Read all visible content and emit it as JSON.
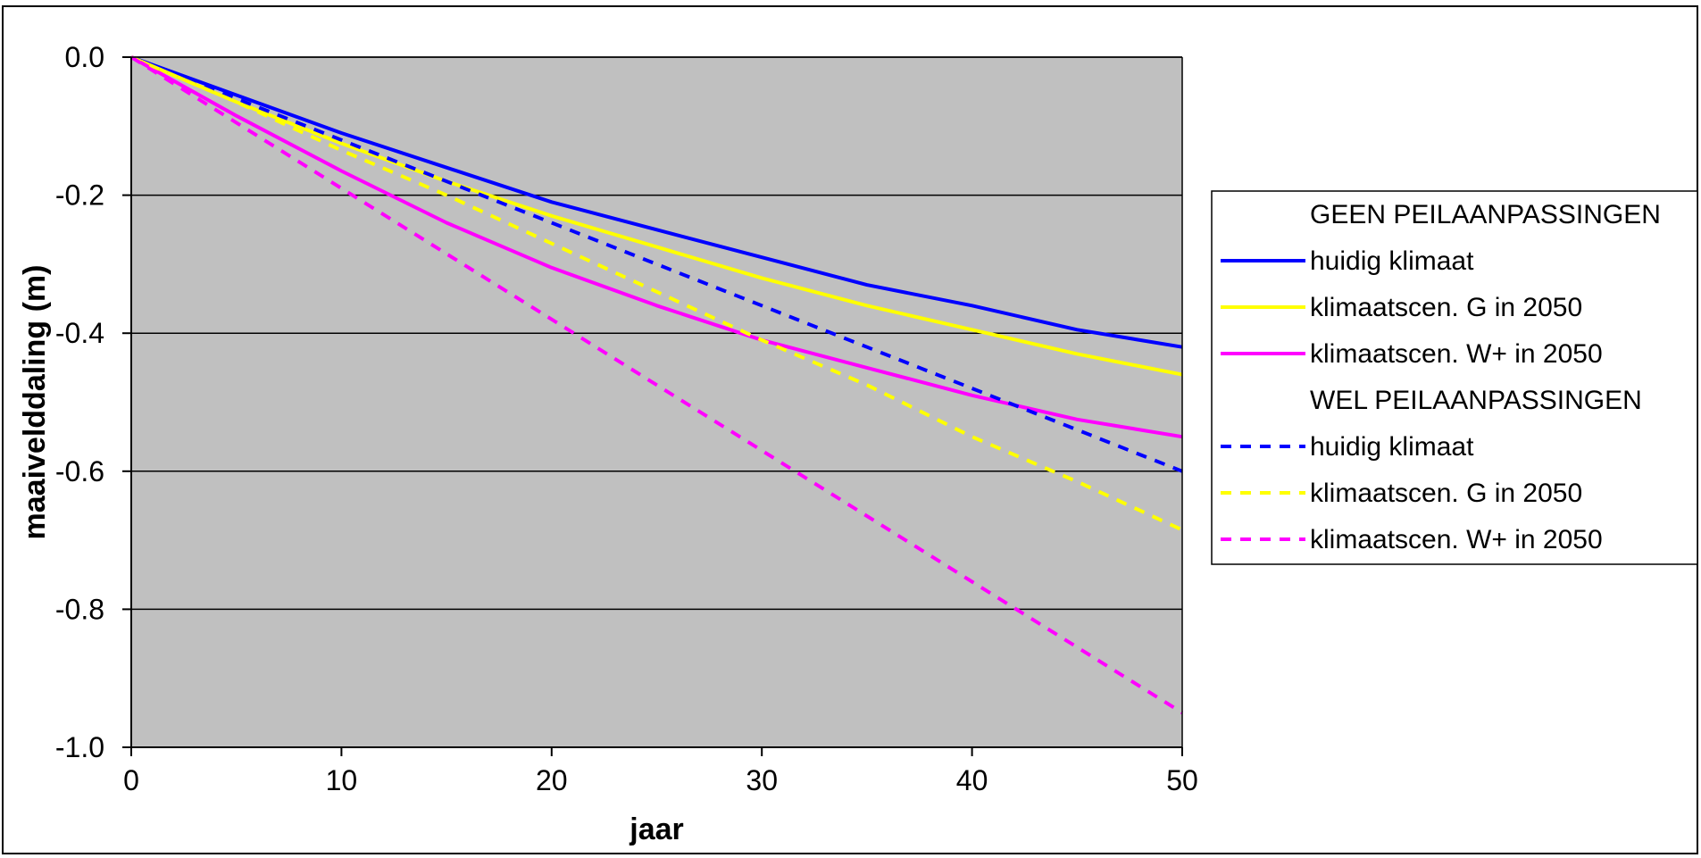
{
  "chart_data": {
    "type": "line",
    "title": "",
    "xlabel": "jaar",
    "ylabel": "maaivelddaling (m)",
    "xlim": [
      0,
      50
    ],
    "ylim": [
      -1.0,
      0.0
    ],
    "xticks": [
      0,
      10,
      20,
      30,
      40,
      50
    ],
    "yticks": [
      0.0,
      -0.2,
      -0.4,
      -0.6,
      -0.8,
      -1.0
    ],
    "xtick_labels": [
      "0",
      "10",
      "20",
      "30",
      "40",
      "50"
    ],
    "ytick_labels": [
      "0.0",
      "-0.2",
      "-0.4",
      "-0.6",
      "-0.8",
      "-1.0"
    ],
    "grid": "horizontal",
    "plot_background": "#c0c0c0",
    "legend_position": "right",
    "legend_groups": [
      "GEEN PEILAANPASSINGEN",
      "WEL PEILAANPASSINGEN"
    ],
    "x": [
      0,
      5,
      10,
      15,
      20,
      25,
      30,
      35,
      40,
      45,
      50
    ],
    "series": [
      {
        "name": "huidig klimaat",
        "group": 0,
        "color": "#0000ff",
        "dash": false,
        "values": [
          0,
          -0.055,
          -0.11,
          -0.16,
          -0.21,
          -0.25,
          -0.29,
          -0.33,
          -0.36,
          -0.395,
          -0.42
        ]
      },
      {
        "name": "klimaatscen. G in 2050",
        "group": 0,
        "color": "#ffff00",
        "dash": false,
        "values": [
          0,
          -0.065,
          -0.125,
          -0.18,
          -0.23,
          -0.275,
          -0.32,
          -0.36,
          -0.395,
          -0.43,
          -0.46
        ]
      },
      {
        "name": "klimaatscen. W+ in 2050",
        "group": 0,
        "color": "#ff00ff",
        "dash": false,
        "values": [
          0,
          -0.085,
          -0.165,
          -0.24,
          -0.305,
          -0.36,
          -0.41,
          -0.45,
          -0.49,
          -0.525,
          -0.55
        ]
      },
      {
        "name": "huidig klimaat",
        "group": 1,
        "color": "#0000ff",
        "dash": true,
        "values": [
          0,
          -0.06,
          -0.12,
          -0.18,
          -0.24,
          -0.3,
          -0.36,
          -0.42,
          -0.48,
          -0.54,
          -0.6
        ]
      },
      {
        "name": "klimaatscen. G in 2050",
        "group": 1,
        "color": "#ffff00",
        "dash": true,
        "values": [
          0,
          -0.065,
          -0.135,
          -0.2,
          -0.27,
          -0.34,
          -0.41,
          -0.475,
          -0.55,
          -0.615,
          -0.685
        ]
      },
      {
        "name": "klimaatscen. W+ in 2050",
        "group": 1,
        "color": "#ff00ff",
        "dash": true,
        "values": [
          0,
          -0.095,
          -0.19,
          -0.285,
          -0.38,
          -0.475,
          -0.57,
          -0.665,
          -0.76,
          -0.855,
          -0.95
        ]
      }
    ]
  }
}
